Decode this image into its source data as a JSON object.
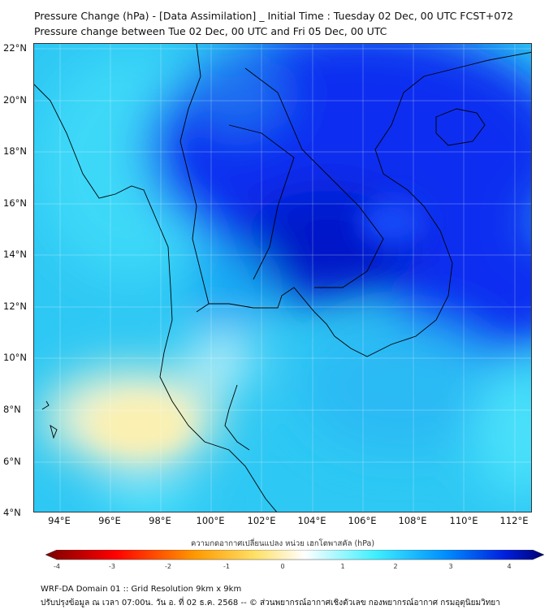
{
  "title": {
    "line1": "Pressure Change (hPa) - [Data Assimilation] _ Initial Time : Tuesday 02 Dec, 00 UTC FCST+072",
    "line2": "Pressure change between Tue 02 Dec, 00 UTC and Fri 05 Dec, 00 UTC"
  },
  "map": {
    "lat_ticks": [
      "22°N",
      "20°N",
      "18°N",
      "16°N",
      "14°N",
      "12°N",
      "10°N",
      "8°N",
      "6°N",
      "4°N"
    ],
    "lon_ticks": [
      "94°E",
      "96°E",
      "98°E",
      "100°E",
      "102°E",
      "104°E",
      "106°E",
      "108°E",
      "110°E",
      "112°E"
    ]
  },
  "colorbar": {
    "title": "ความกดอากาศเปลี่ยนแปลง หน่วย เฮกโตพาสคัล (hPa)",
    "labels": [
      "-4",
      "-3",
      "-2",
      "-1",
      "0",
      "1",
      "2",
      "3",
      "4"
    ],
    "colors": [
      "#7a0000",
      "#ff0000",
      "#ff9900",
      "#ffe066",
      "#ffffff",
      "#40f0ff",
      "#0090ff",
      "#0020e0",
      "#000070"
    ]
  },
  "footer": {
    "line1": "WRF-DA Domain 01 :: Grid Resolution 9km x 9km",
    "line2": "ปรับปรุงข้อมูล ณ เวลา 07:00น. วัน อ. ที่ 02 ธ.ค. 2568 -- © ส่วนพยากรณ์อากาศเชิงตัวเลข กองพยากรณ์อากาศ กรมอุตุนิยมวิทยา"
  }
}
